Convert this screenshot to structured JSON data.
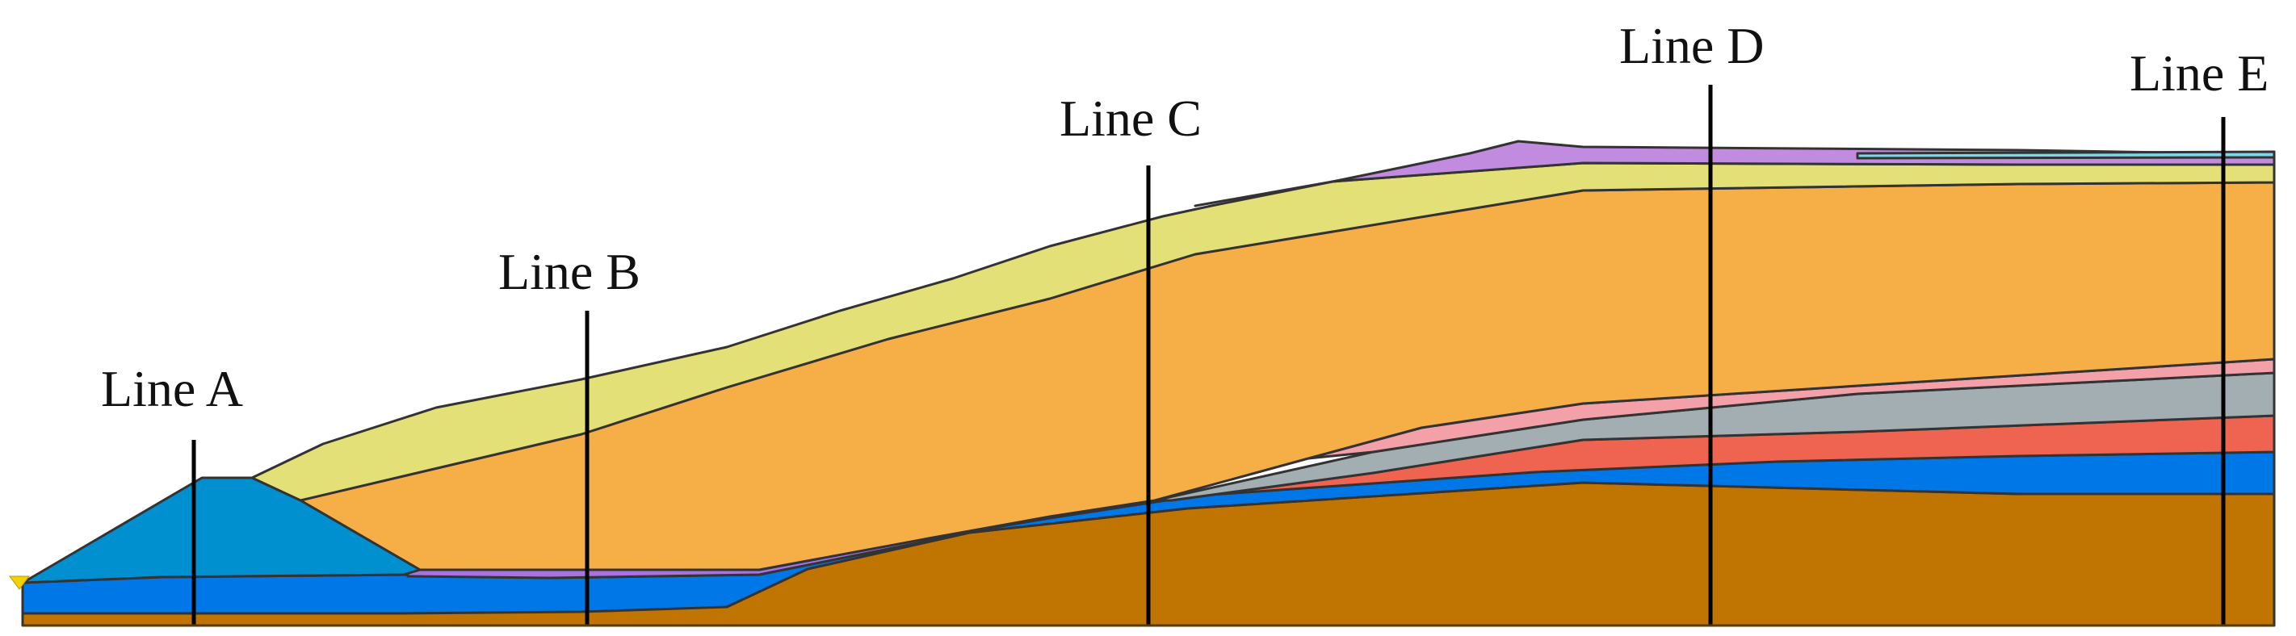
{
  "section_lines": [
    {
      "id": "A",
      "label": "Line A"
    },
    {
      "id": "B",
      "label": "Line B"
    },
    {
      "id": "C",
      "label": "Line C"
    },
    {
      "id": "D",
      "label": "Line D"
    },
    {
      "id": "E",
      "label": "Line E"
    }
  ],
  "colors": {
    "base_soil": "#C07402",
    "blue_layer": "#0077E6",
    "dam_fill": "#0090D0",
    "orange_fill": "#F6AE47",
    "yellow_cap": "#E3E078",
    "purple_layer": "#C18BDF",
    "grey_layer": "#A2AEB2",
    "red_layer": "#EE6450",
    "pink_layer": "#F4A0A8",
    "cyan_layer": "#7FD6E6",
    "water_marker": "#F2D200"
  },
  "icons": {
    "water_level": "water-level-triangle-icon"
  }
}
